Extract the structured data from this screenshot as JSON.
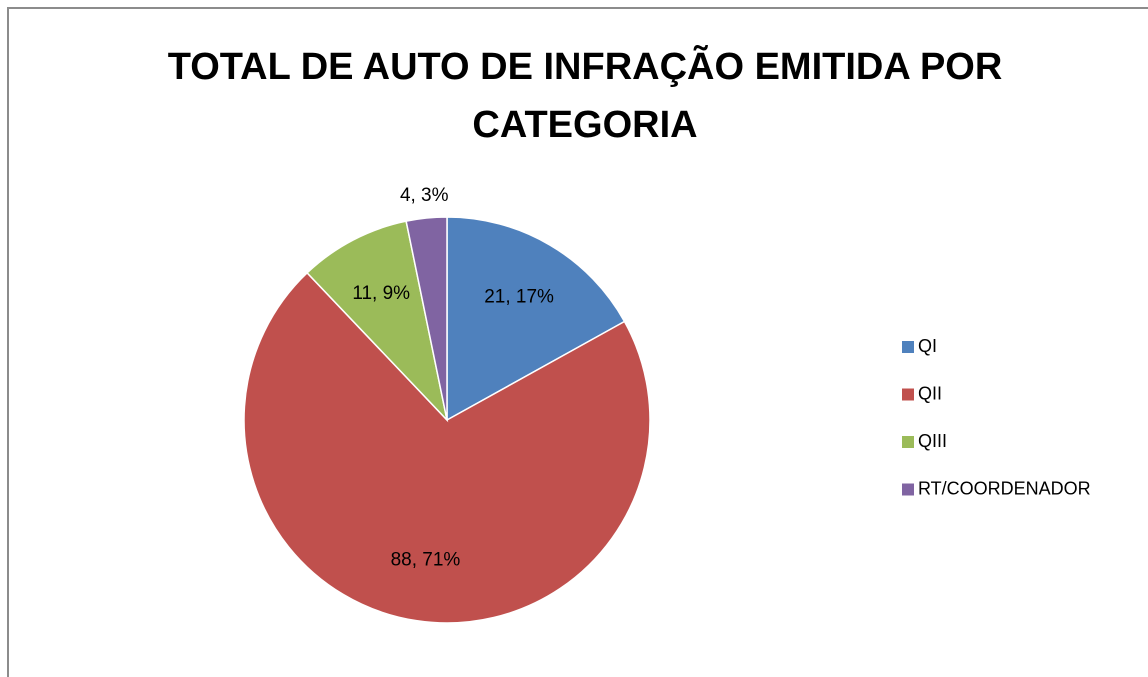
{
  "chart_data": {
    "type": "pie",
    "title": "TOTAL DE AUTO DE INFRAÇÃO EMITIDA POR CATEGORIA",
    "categories": [
      "QI",
      "QII",
      "QIII",
      "RT/COORDENADOR"
    ],
    "values": [
      21,
      88,
      11,
      4
    ],
    "value_labels": [
      "21, 17%",
      "88, 71%",
      "11, 9%",
      "4, 3%"
    ],
    "colors": [
      "#4f81bd",
      "#c0504d",
      "#9bbb59",
      "#8064a2"
    ],
    "legend": "right"
  }
}
